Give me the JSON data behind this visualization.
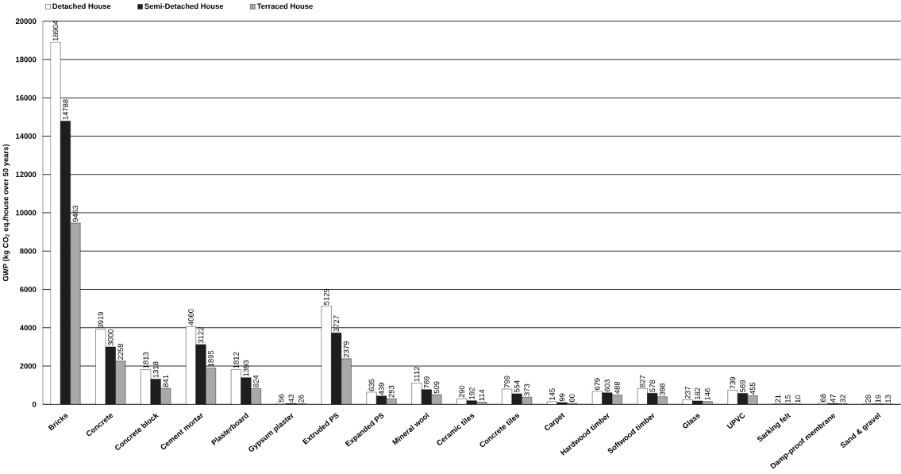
{
  "chart_data": {
    "type": "bar",
    "ylabel": "GWP (kg CO$_{2}$ eq./house over 50 years)",
    "categories": [
      "Bricks",
      "Concrete",
      "Concrete block",
      "Cement mortar",
      "Plasterboard",
      "Gypsum plaster",
      "Extruded PS",
      "Expanded PS",
      "Mineral wool",
      "Ceramic tiles",
      "Concrete tiles",
      "Carpet",
      "Hardwood timber",
      "Softwood timber",
      "Glass",
      "UPVC",
      "Sarking felt",
      "Damp-proof membrane",
      "Sand & gravel"
    ],
    "series": [
      {
        "name": "Detached House",
        "color": "#ffffff",
        "values": [
          18904,
          3919,
          1813,
          4060,
          1812,
          56,
          5129,
          635,
          1112,
          290,
          799,
          145,
          679,
          827,
          237,
          739,
          21,
          68,
          28
        ]
      },
      {
        "name": "Semi-Detached House",
        "color": "#1e1e1e",
        "values": [
          14788,
          3000,
          1318,
          3122,
          1393,
          43,
          3727,
          439,
          769,
          192,
          554,
          99,
          603,
          578,
          182,
          569,
          15,
          47,
          19
        ]
      },
      {
        "name": "Terraced House",
        "color": "#a8a8a8",
        "values": [
          9463,
          2258,
          841,
          1895,
          824,
          26,
          2379,
          293,
          509,
          114,
          373,
          60,
          488,
          398,
          146,
          455,
          10,
          32,
          13
        ]
      }
    ],
    "ylim": [
      0,
      20000
    ],
    "yticks": [
      0,
      2000,
      4000,
      6000,
      8000,
      10000,
      12000,
      14000,
      16000,
      18000,
      20000
    ],
    "grid": "y",
    "legend": "top left",
    "data_labels": true
  }
}
